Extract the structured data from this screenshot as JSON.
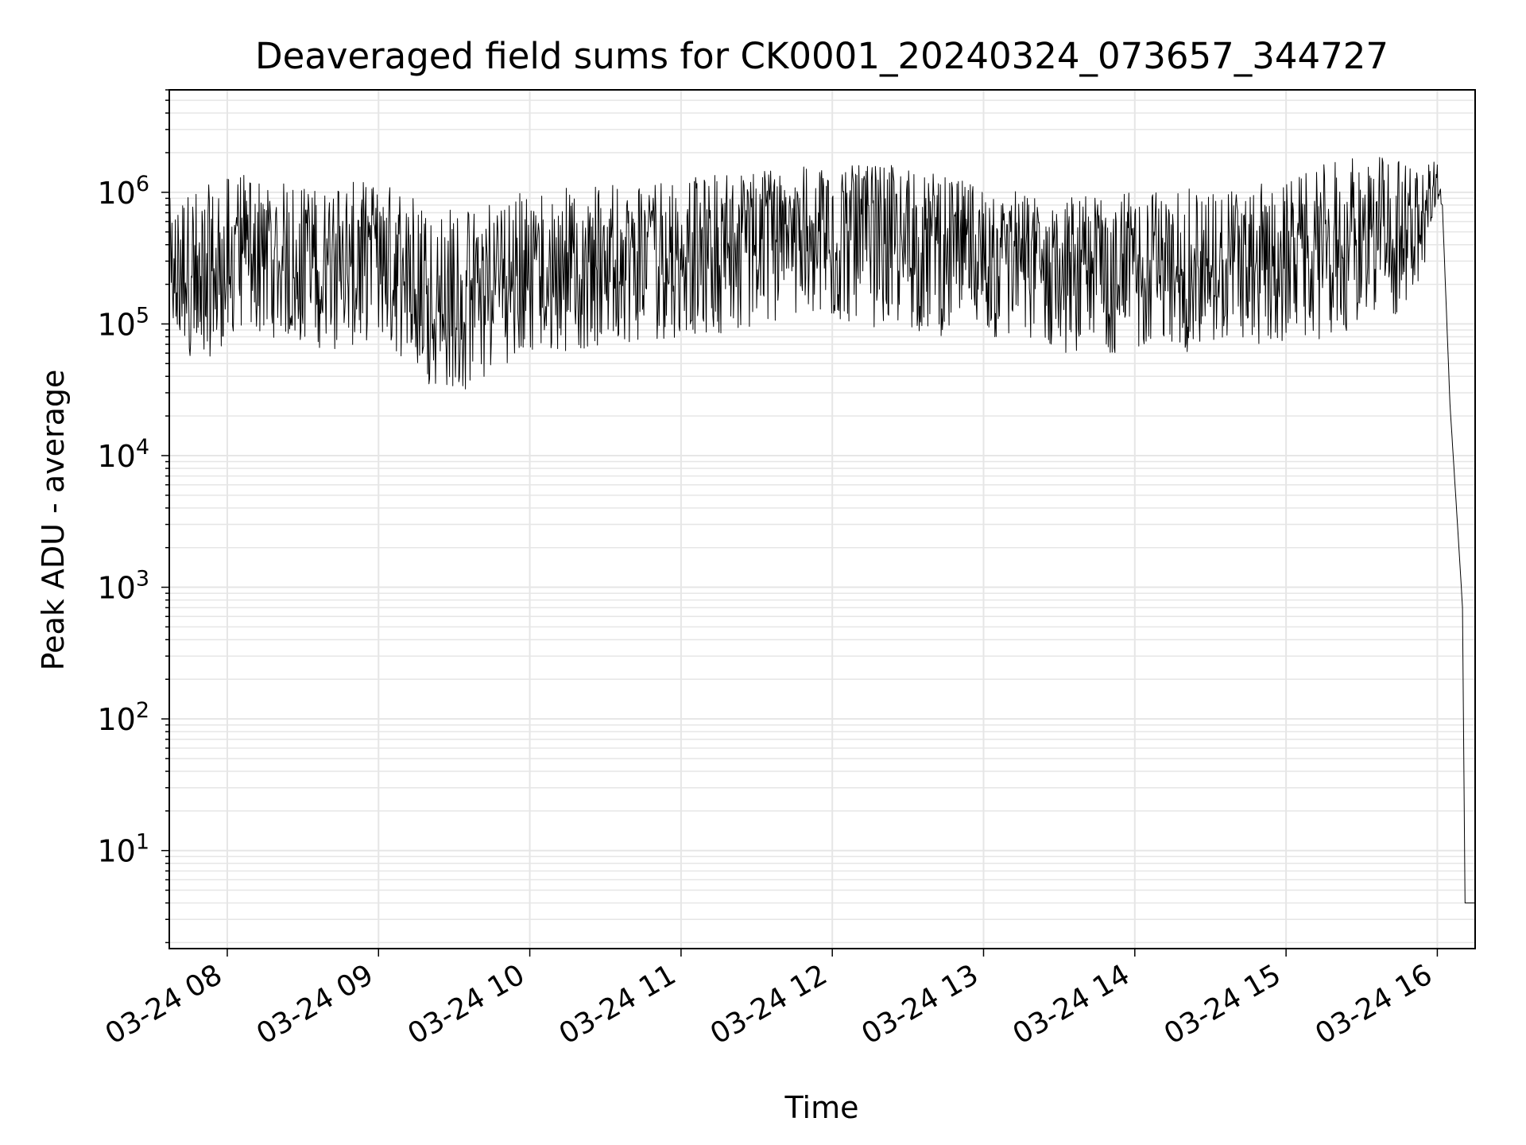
{
  "chart_data": {
    "type": "line",
    "title": "Deaveraged field sums for CK0001_20240324_073657_344727",
    "xlabel": "Time",
    "ylabel": "Peak ADU - average",
    "yscale": "log",
    "xlim": [
      "2024-03-24 07:37",
      "2024-03-24 16:15"
    ],
    "ylim": [
      1.8,
      6000000
    ],
    "xtick_labels": [
      "03-24 08",
      "03-24 09",
      "03-24 10",
      "03-24 11",
      "03-24 12",
      "03-24 13",
      "03-24 14",
      "03-24 15",
      "03-24 16"
    ],
    "xtick_values": [
      "2024-03-24 08:00",
      "2024-03-24 09:00",
      "2024-03-24 10:00",
      "2024-03-24 11:00",
      "2024-03-24 12:00",
      "2024-03-24 13:00",
      "2024-03-24 14:00",
      "2024-03-24 15:00",
      "2024-03-24 16:00"
    ],
    "ytick_values": [
      10,
      100,
      1000,
      10000,
      100000,
      1000000
    ],
    "ytick_labels": [
      {
        "base": "10",
        "exp": "1"
      },
      {
        "base": "10",
        "exp": "2"
      },
      {
        "base": "10",
        "exp": "3"
      },
      {
        "base": "10",
        "exp": "4"
      },
      {
        "base": "10",
        "exp": "5"
      },
      {
        "base": "10",
        "exp": "6"
      }
    ],
    "grid": true,
    "line_color": "#000000",
    "grid_color": "#e6e6e6",
    "series": [
      {
        "x": [
          "2024-03-24 07:37",
          "2024-03-24 07:50",
          "2024-03-24 08:05",
          "2024-03-24 08:30",
          "2024-03-24 08:45",
          "2024-03-24 09:00",
          "2024-03-24 09:20",
          "2024-03-24 09:35",
          "2024-03-24 09:50",
          "2024-03-24 10:10",
          "2024-03-24 10:40",
          "2024-03-24 11:00",
          "2024-03-24 11:30",
          "2024-03-24 12:00",
          "2024-03-24 12:30",
          "2024-03-24 13:00",
          "2024-03-24 13:30",
          "2024-03-24 14:00",
          "2024-03-24 14:30",
          "2024-03-24 15:00",
          "2024-03-24 15:20",
          "2024-03-24 15:40",
          "2024-03-24 15:55",
          "2024-03-24 16:00",
          "2024-03-24 16:02",
          "2024-03-24 16:05",
          "2024-03-24 16:08",
          "2024-03-24 16:10",
          "2024-03-24 16:11",
          "2024-03-24 16:15"
        ],
        "y": [
          250000,
          120000,
          400000,
          350000,
          300000,
          500000,
          150000,
          120000,
          250000,
          300000,
          450000,
          500000,
          700000,
          800000,
          750000,
          450000,
          300000,
          300000,
          300000,
          350000,
          500000,
          450000,
          900000,
          1500000,
          800000,
          25000,
          3000,
          700,
          4,
          4
        ],
        "low": [
          70000,
          50000,
          90000,
          70000,
          60000,
          80000,
          35000,
          30000,
          50000,
          60000,
          70000,
          80000,
          90000,
          100000,
          90000,
          70000,
          60000,
          60000,
          60000,
          70000,
          80000,
          90000,
          200000,
          800000,
          800000,
          25000,
          3000,
          700,
          4,
          4
        ],
        "high": [
          900000,
          1100000,
          1400000,
          1100000,
          1200000,
          1200000,
          900000,
          800000,
          1000000,
          1100000,
          1200000,
          1300000,
          1500000,
          1600000,
          1600000,
          1100000,
          950000,
          1000000,
          1100000,
          1200000,
          1800000,
          1900000,
          1700000,
          2000000,
          800000,
          25000,
          3000,
          700,
          4,
          4
        ]
      }
    ]
  }
}
